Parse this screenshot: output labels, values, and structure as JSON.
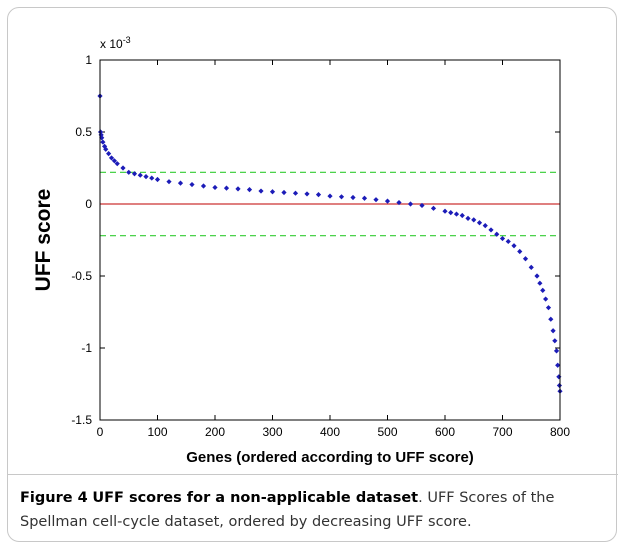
{
  "chart_data": {
    "type": "scatter",
    "xlabel": "Genes (ordered according to UFF score)",
    "ylabel": "UFF score",
    "y_scale_label": {
      "base": "x 10",
      "exponent": "-3"
    },
    "color": "#1c1cb8",
    "x": [
      0,
      1,
      2,
      3,
      5,
      8,
      10,
      15,
      20,
      25,
      30,
      40,
      50,
      60,
      70,
      80,
      90,
      100,
      120,
      140,
      160,
      180,
      200,
      220,
      240,
      260,
      280,
      300,
      320,
      340,
      360,
      380,
      400,
      420,
      440,
      460,
      480,
      500,
      520,
      540,
      560,
      580,
      600,
      610,
      620,
      630,
      640,
      650,
      660,
      670,
      680,
      690,
      700,
      710,
      720,
      730,
      740,
      750,
      760,
      765,
      770,
      775,
      780,
      784,
      788,
      791,
      794,
      796,
      798,
      799,
      800
    ],
    "values": [
      0.75,
      0.5,
      0.48,
      0.46,
      0.43,
      0.4,
      0.38,
      0.35,
      0.32,
      0.3,
      0.28,
      0.25,
      0.22,
      0.21,
      0.2,
      0.19,
      0.18,
      0.17,
      0.155,
      0.145,
      0.135,
      0.125,
      0.115,
      0.11,
      0.105,
      0.1,
      0.09,
      0.085,
      0.08,
      0.075,
      0.07,
      0.065,
      0.055,
      0.05,
      0.045,
      0.04,
      0.03,
      0.02,
      0.01,
      0,
      -0.01,
      -0.03,
      -0.05,
      -0.06,
      -0.07,
      -0.08,
      -0.1,
      -0.11,
      -0.13,
      -0.15,
      -0.18,
      -0.21,
      -0.24,
      -0.26,
      -0.29,
      -0.33,
      -0.38,
      -0.44,
      -0.5,
      -0.55,
      -0.6,
      -0.66,
      -0.72,
      -0.8,
      -0.88,
      -0.95,
      -1.02,
      -1.12,
      -1.2,
      -1.26,
      -1.3
    ],
    "reference_lines": [
      {
        "y": 0,
        "color": "#cc3333",
        "style": "solid"
      },
      {
        "y": 0.22,
        "color": "#33cc33",
        "style": "dashed"
      },
      {
        "y": -0.22,
        "color": "#33cc33",
        "style": "dashed"
      }
    ],
    "xlim": [
      0,
      800
    ],
    "xticks": [
      0,
      100,
      200,
      300,
      400,
      500,
      600,
      700,
      800
    ],
    "ylim": [
      -1.5,
      1
    ],
    "yticks": [
      -1.5,
      -1,
      -0.5,
      0,
      0.5,
      1
    ],
    "grid": false
  },
  "caption": {
    "label": "Figure 4",
    "title": "UFF scores for a non-applicable dataset",
    "text": ". UFF Scores of the Spellman cell-cycle dataset, ordered by decreasing UFF score."
  }
}
